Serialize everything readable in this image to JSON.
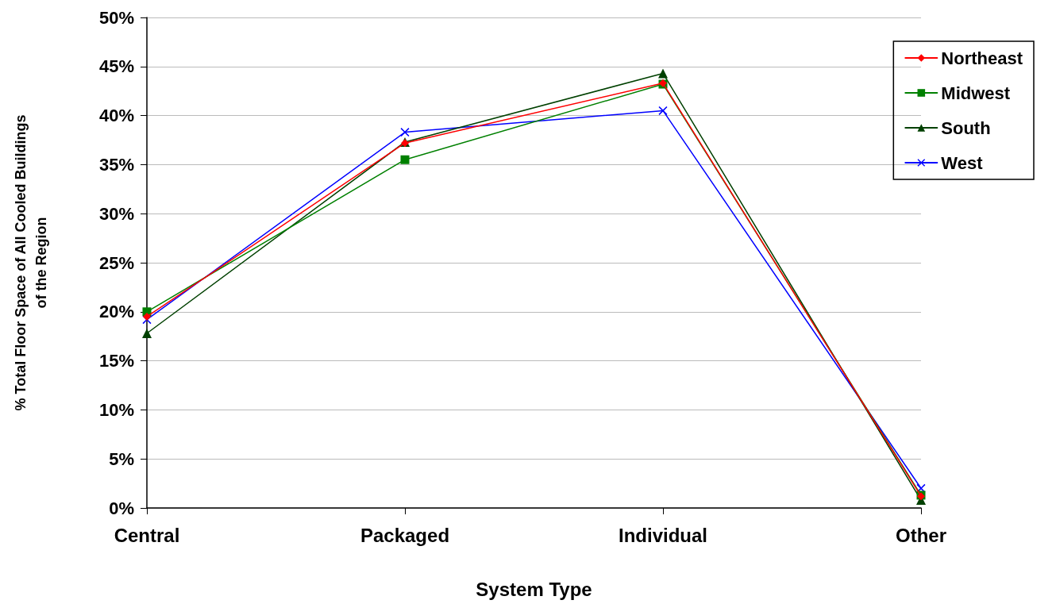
{
  "chart_data": {
    "type": "line",
    "xlabel": "System Type",
    "ylabel": "% Total Floor Space of All Cooled Buildings\nof the Region",
    "categories": [
      "Central",
      "Packaged",
      "Individual",
      "Other"
    ],
    "series": [
      {
        "name": "Northeast",
        "color": "#ff0000",
        "marker": "diamond",
        "values": [
          19.5,
          37.2,
          43.3,
          1.2
        ]
      },
      {
        "name": "Midwest",
        "color": "#008000",
        "marker": "square",
        "values": [
          20.0,
          35.5,
          43.2,
          1.3
        ]
      },
      {
        "name": "South",
        "color": "#004000",
        "marker": "triangle",
        "values": [
          17.8,
          37.3,
          44.3,
          0.8
        ]
      },
      {
        "name": "West",
        "color": "#0000ff",
        "marker": "cross",
        "values": [
          19.2,
          38.3,
          40.5,
          2.0
        ]
      }
    ],
    "ylim": [
      0,
      50
    ],
    "yticks": [
      {
        "value": 0,
        "label": "0%"
      },
      {
        "value": 5,
        "label": "5%"
      },
      {
        "value": 10,
        "label": "10%"
      },
      {
        "value": 15,
        "label": "15%"
      },
      {
        "value": 20,
        "label": "20%"
      },
      {
        "value": 25,
        "label": "25%"
      },
      {
        "value": 30,
        "label": "30%"
      },
      {
        "value": 35,
        "label": "35%"
      },
      {
        "value": 40,
        "label": "40%"
      },
      {
        "value": 45,
        "label": "45%"
      },
      {
        "value": 50,
        "label": "50%"
      }
    ],
    "grid": "y",
    "legend": "top right"
  }
}
